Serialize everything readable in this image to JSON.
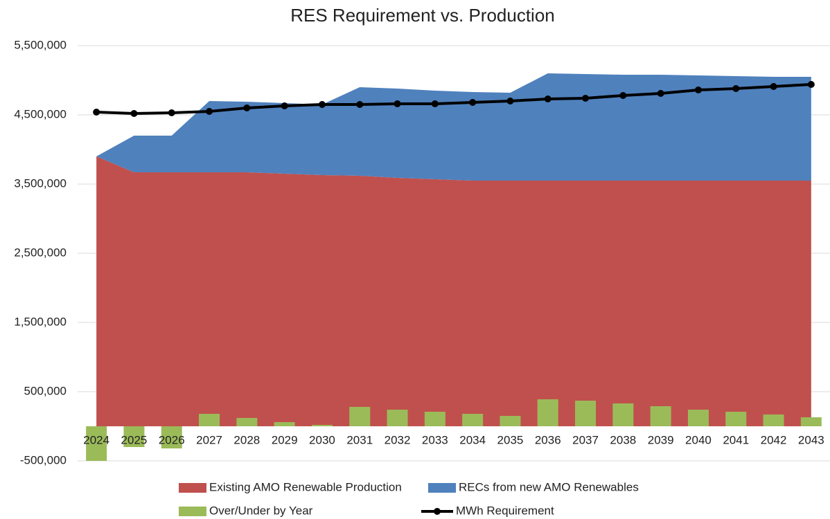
{
  "chart_data": {
    "type": "combo",
    "title": "RES Requirement vs. Production",
    "categories": [
      "2024",
      "2025",
      "2026",
      "2027",
      "2028",
      "2029",
      "2030",
      "2031",
      "2032",
      "2033",
      "2034",
      "2035",
      "2036",
      "2037",
      "2038",
      "2039",
      "2040",
      "2041",
      "2042",
      "2043"
    ],
    "series": [
      {
        "name": "Existing AMO Renewable Production",
        "type": "area",
        "color": "#c0504d",
        "values": [
          3900000,
          3670000,
          3670000,
          3670000,
          3670000,
          3650000,
          3630000,
          3620000,
          3590000,
          3570000,
          3550000,
          3550000,
          3550000,
          3550000,
          3550000,
          3550000,
          3550000,
          3550000,
          3550000,
          3550000
        ]
      },
      {
        "name": "RECs from new AMO Renewables",
        "type": "area",
        "color": "#4f81bd",
        "values": [
          0,
          530000,
          530000,
          1030000,
          1020000,
          1020000,
          1020000,
          1280000,
          1290000,
          1280000,
          1280000,
          1270000,
          1550000,
          1540000,
          1530000,
          1530000,
          1520000,
          1510000,
          1500000,
          1500000
        ]
      },
      {
        "name": "Over/Under by Year",
        "type": "bar",
        "color": "#9bbb59",
        "values": [
          -500000,
          -300000,
          -320000,
          180000,
          120000,
          60000,
          20000,
          280000,
          240000,
          210000,
          180000,
          150000,
          390000,
          370000,
          330000,
          290000,
          240000,
          210000,
          170000,
          130000
        ]
      },
      {
        "name": "MWh Requirement",
        "type": "line",
        "color": "#000000",
        "values": [
          4540000,
          4520000,
          4530000,
          4550000,
          4600000,
          4630000,
          4650000,
          4650000,
          4660000,
          4660000,
          4680000,
          4700000,
          4730000,
          4740000,
          4780000,
          4810000,
          4860000,
          4880000,
          4910000,
          4940000
        ]
      }
    ],
    "ylim": [
      -500000,
      5500000
    ],
    "yticks": [
      {
        "value": -500000,
        "label": "-500,000"
      },
      {
        "value": 500000,
        "label": "500,000"
      },
      {
        "value": 1500000,
        "label": "1,500,000"
      },
      {
        "value": 2500000,
        "label": "2,500,000"
      },
      {
        "value": 3500000,
        "label": "3,500,000"
      },
      {
        "value": 4500000,
        "label": "4,500,000"
      },
      {
        "value": 5500000,
        "label": "5,500,000"
      }
    ],
    "grid": true
  }
}
